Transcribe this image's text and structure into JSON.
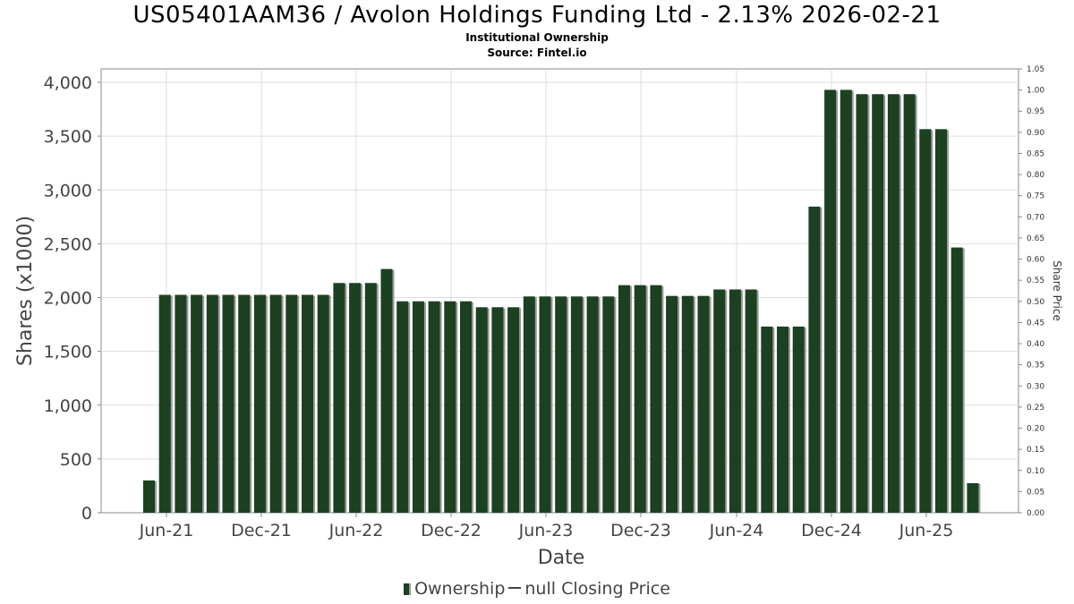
{
  "chart_data": {
    "type": "bar",
    "title": "US05401AAM36 / Avolon Holdings Funding Ltd - 2.13% 2026-02-21",
    "subtitle_1": "Institutional Ownership",
    "subtitle_2": "Source: Fintel.io",
    "xlabel": "Date",
    "ylabel": "Shares (x1000)",
    "y2label": "Share Price",
    "ylim": [
      0,
      4000
    ],
    "y2lim": [
      0,
      1.05
    ],
    "yticks": [
      "0",
      "500",
      "1,000",
      "1,500",
      "2,000",
      "2,500",
      "3,000",
      "3,500",
      "4,000"
    ],
    "y2ticks": [
      "0.00",
      "0.05",
      "0.10",
      "0.15",
      "0.20",
      "0.25",
      "0.30",
      "0.35",
      "0.40",
      "0.45",
      "0.50",
      "0.55",
      "0.60",
      "0.65",
      "0.70",
      "0.75",
      "0.80",
      "0.85",
      "0.90",
      "0.95",
      "1.00",
      "1.05"
    ],
    "xticks": [
      "Jun-21",
      "Dec-21",
      "Jun-22",
      "Dec-22",
      "Jun-23",
      "Dec-23",
      "Jun-24",
      "Dec-24",
      "Jun-25"
    ],
    "grid": true,
    "legend_position": "bottom",
    "series": [
      {
        "name": "Ownership",
        "color": "#1b4121",
        "values": [
          300,
          2025,
          2025,
          2025,
          2025,
          2025,
          2025,
          2025,
          2025,
          2025,
          2025,
          2025,
          2135,
          2135,
          2135,
          2265,
          1965,
          1965,
          1965,
          1965,
          1965,
          1910,
          1910,
          1910,
          2010,
          2010,
          2010,
          2010,
          2010,
          2010,
          2115,
          2115,
          2115,
          2015,
          2015,
          2015,
          2075,
          2075,
          2075,
          1730,
          1730,
          1730,
          2845,
          3930,
          3930,
          3890,
          3890,
          3890,
          3890,
          3565,
          3565,
          2465,
          275
        ]
      }
    ],
    "legend": {
      "ownership": "Ownership",
      "closing_price": "null Closing Price"
    }
  }
}
